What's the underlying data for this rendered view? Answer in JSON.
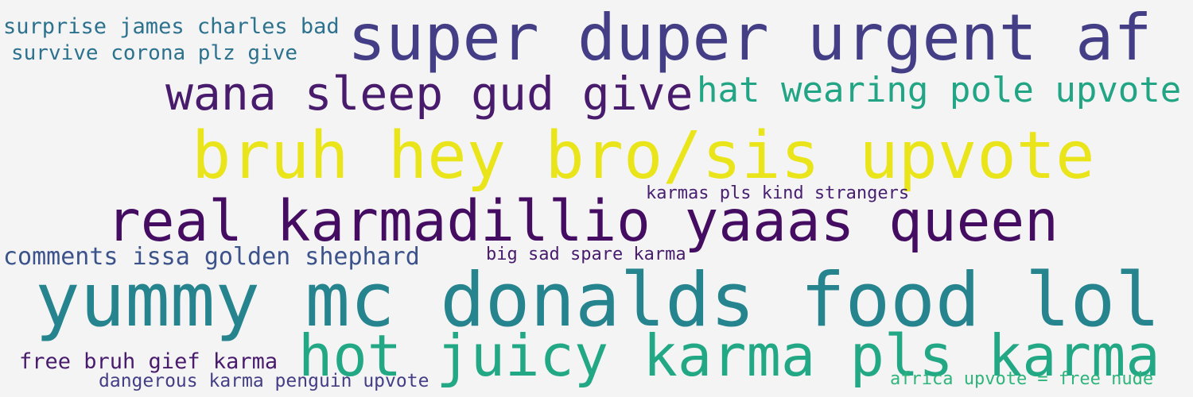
{
  "word_cloud": {
    "phrases": [
      {
        "id": "super-duper-urgent-af",
        "text": "super duper urgent af",
        "color": "#433e85"
      },
      {
        "id": "surprise-james-charles-bad",
        "text": "surprise james charles bad",
        "color": "#2c728e"
      },
      {
        "id": "survive-corona-plz-give",
        "text": "survive corona plz give",
        "color": "#2c728e"
      },
      {
        "id": "wana-sleep-gud-give",
        "text": "wana sleep gud give",
        "color": "#481b6d"
      },
      {
        "id": "hat-wearing-pole-upvote",
        "text": "hat wearing pole upvote",
        "color": "#21a585"
      },
      {
        "id": "bruh-hey-bro-sis-upvote",
        "text": "bruh hey bro/sis upvote",
        "color": "#e9e51a"
      },
      {
        "id": "karmas-pls-kind-strangers",
        "text": "karmas pls kind strangers",
        "color": "#482071"
      },
      {
        "id": "real-karmadillio-yaaas-queen",
        "text": "real karmadillio yaaas queen",
        "color": "#450d62"
      },
      {
        "id": "comments-issa-golden-shephard",
        "text": "comments issa golden shephard",
        "color": "#3b528b"
      },
      {
        "id": "big-sad-spare-karma",
        "text": "big sad spare karma",
        "color": "#481b6d"
      },
      {
        "id": "yummy-mc-donalds-food-lol",
        "text": "yummy mc donalds food lol",
        "color": "#25848e"
      },
      {
        "id": "hot-juicy-karma-pls-karma",
        "text": "hot juicy karma pls karma",
        "color": "#22a884"
      },
      {
        "id": "free-bruh-gief-karma",
        "text": "free bruh gief karma",
        "color": "#481b6d"
      },
      {
        "id": "dangerous-karma-penguin-upvote",
        "text": "dangerous karma penguin upvote",
        "color": "#433e85"
      },
      {
        "id": "africa-upvote-free-nude",
        "text": "africa upvote = free nude",
        "color": "#2fb47c"
      }
    ]
  }
}
